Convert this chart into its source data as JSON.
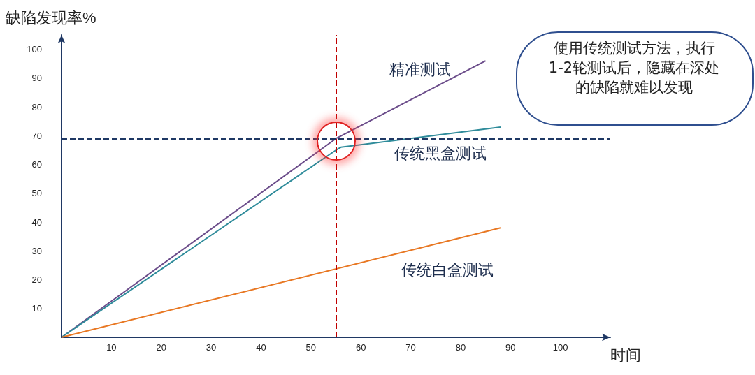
{
  "chart_data": {
    "type": "line",
    "xlabel": "时间",
    "ylabel": "缺陷发现率%",
    "xlim": [
      0,
      110
    ],
    "ylim": [
      0,
      105
    ],
    "xticks": [
      10,
      20,
      30,
      40,
      50,
      60,
      70,
      80,
      90,
      100
    ],
    "yticks": [
      10,
      20,
      30,
      40,
      50,
      60,
      70,
      80,
      90,
      100
    ],
    "series": [
      {
        "name": "精准测试",
        "color": "#6b4c8a",
        "x": [
          0,
          55,
          85
        ],
        "values": [
          0,
          69,
          96
        ]
      },
      {
        "name": "传统黑盒测试",
        "color": "#2e8b9a",
        "x": [
          0,
          55,
          56,
          88
        ],
        "values": [
          0,
          65,
          66,
          73
        ]
      },
      {
        "name": "传统白盒测试",
        "color": "#e87722",
        "x": [
          0,
          88
        ],
        "values": [
          0,
          38
        ]
      }
    ],
    "ref_lines": [
      {
        "axis": "x",
        "value": 55,
        "color": "#c00000",
        "line_style": "dashed"
      },
      {
        "axis": "y",
        "value": 69,
        "color": "#1f3864",
        "line_style": "dashed"
      }
    ],
    "annotations": [
      "使用传统测试方法，执行1-2轮测试后，隐藏在深处的缺陷就难以发现"
    ],
    "grid": false,
    "marker": "none",
    "line_style": "solid"
  }
}
